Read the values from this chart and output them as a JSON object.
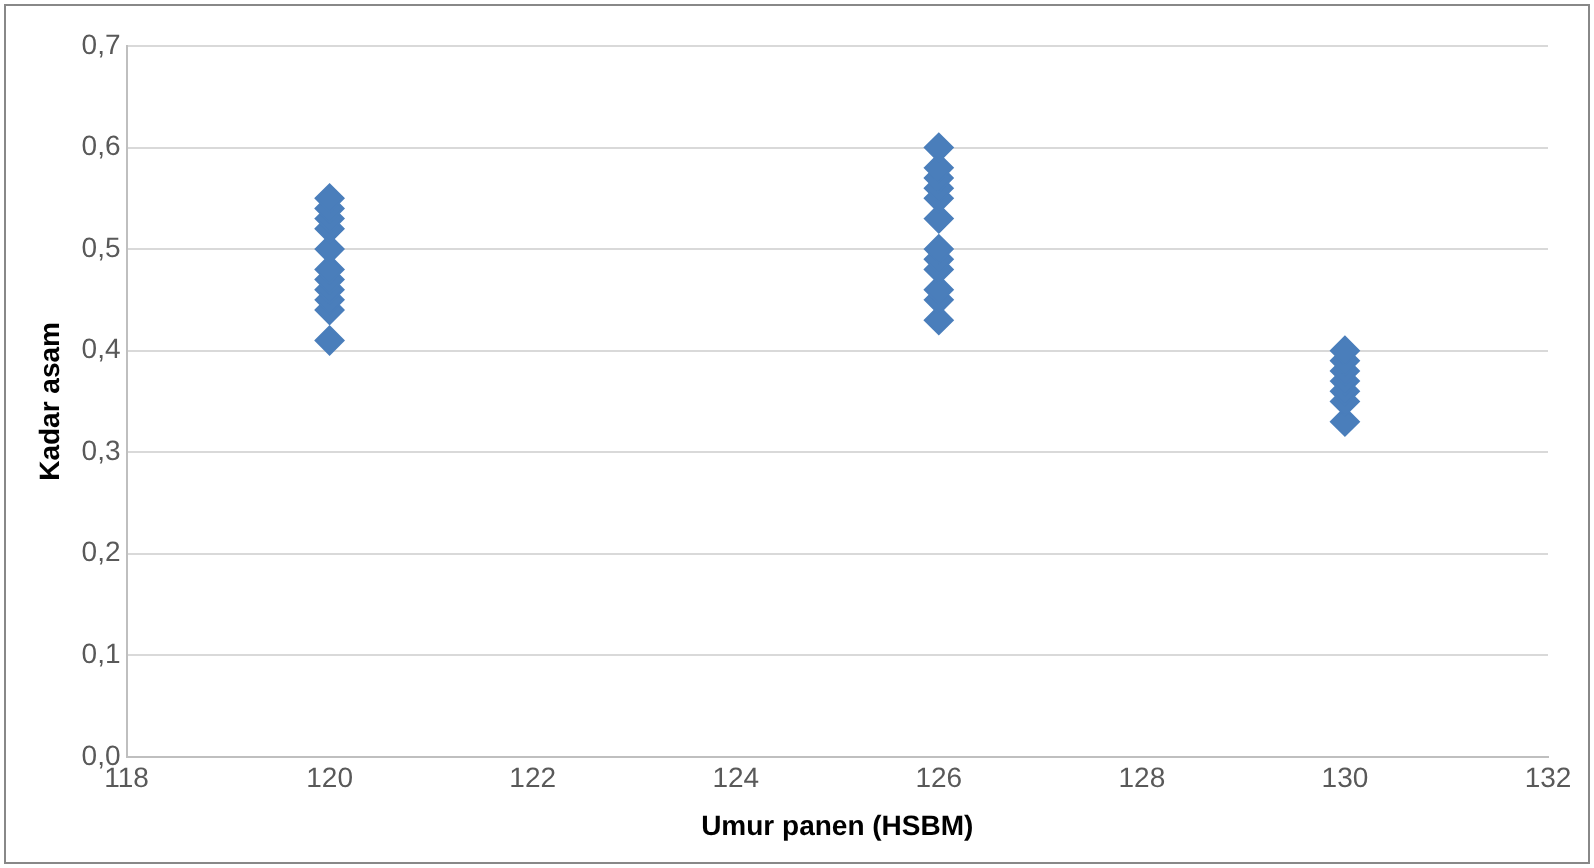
{
  "chart_data": {
    "type": "scatter",
    "xlabel": "Umur panen (HSBM)",
    "ylabel": "Kadar asam",
    "x": [
      120,
      120,
      120,
      120,
      120,
      120,
      120,
      120,
      120,
      120,
      120,
      126,
      126,
      126,
      126,
      126,
      126,
      126,
      126,
      126,
      126,
      126,
      126,
      130,
      130,
      130,
      130,
      130,
      130,
      130
    ],
    "values": [
      0.41,
      0.44,
      0.45,
      0.46,
      0.47,
      0.48,
      0.5,
      0.52,
      0.53,
      0.54,
      0.55,
      0.43,
      0.45,
      0.46,
      0.48,
      0.49,
      0.5,
      0.53,
      0.55,
      0.56,
      0.57,
      0.58,
      0.6,
      0.33,
      0.35,
      0.36,
      0.37,
      0.38,
      0.39,
      0.4
    ],
    "color": "#4a7ebb",
    "marker": "diamond",
    "grid": "y",
    "legend": false,
    "xlim": [
      118,
      132
    ],
    "xticks": [
      118,
      120,
      122,
      124,
      126,
      128,
      130,
      132
    ],
    "ylim": [
      0,
      0.7
    ],
    "yticks": [
      {
        "value": 0,
        "label": "0,0"
      },
      {
        "value": 0.1,
        "label": "0,1"
      },
      {
        "value": 0.2,
        "label": "0,2"
      },
      {
        "value": 0.3,
        "label": "0,3"
      },
      {
        "value": 0.4,
        "label": "0,4"
      },
      {
        "value": 0.5,
        "label": "0,5"
      },
      {
        "value": 0.6,
        "label": "0,6"
      },
      {
        "value": 0.7,
        "label": "0,7"
      }
    ]
  }
}
